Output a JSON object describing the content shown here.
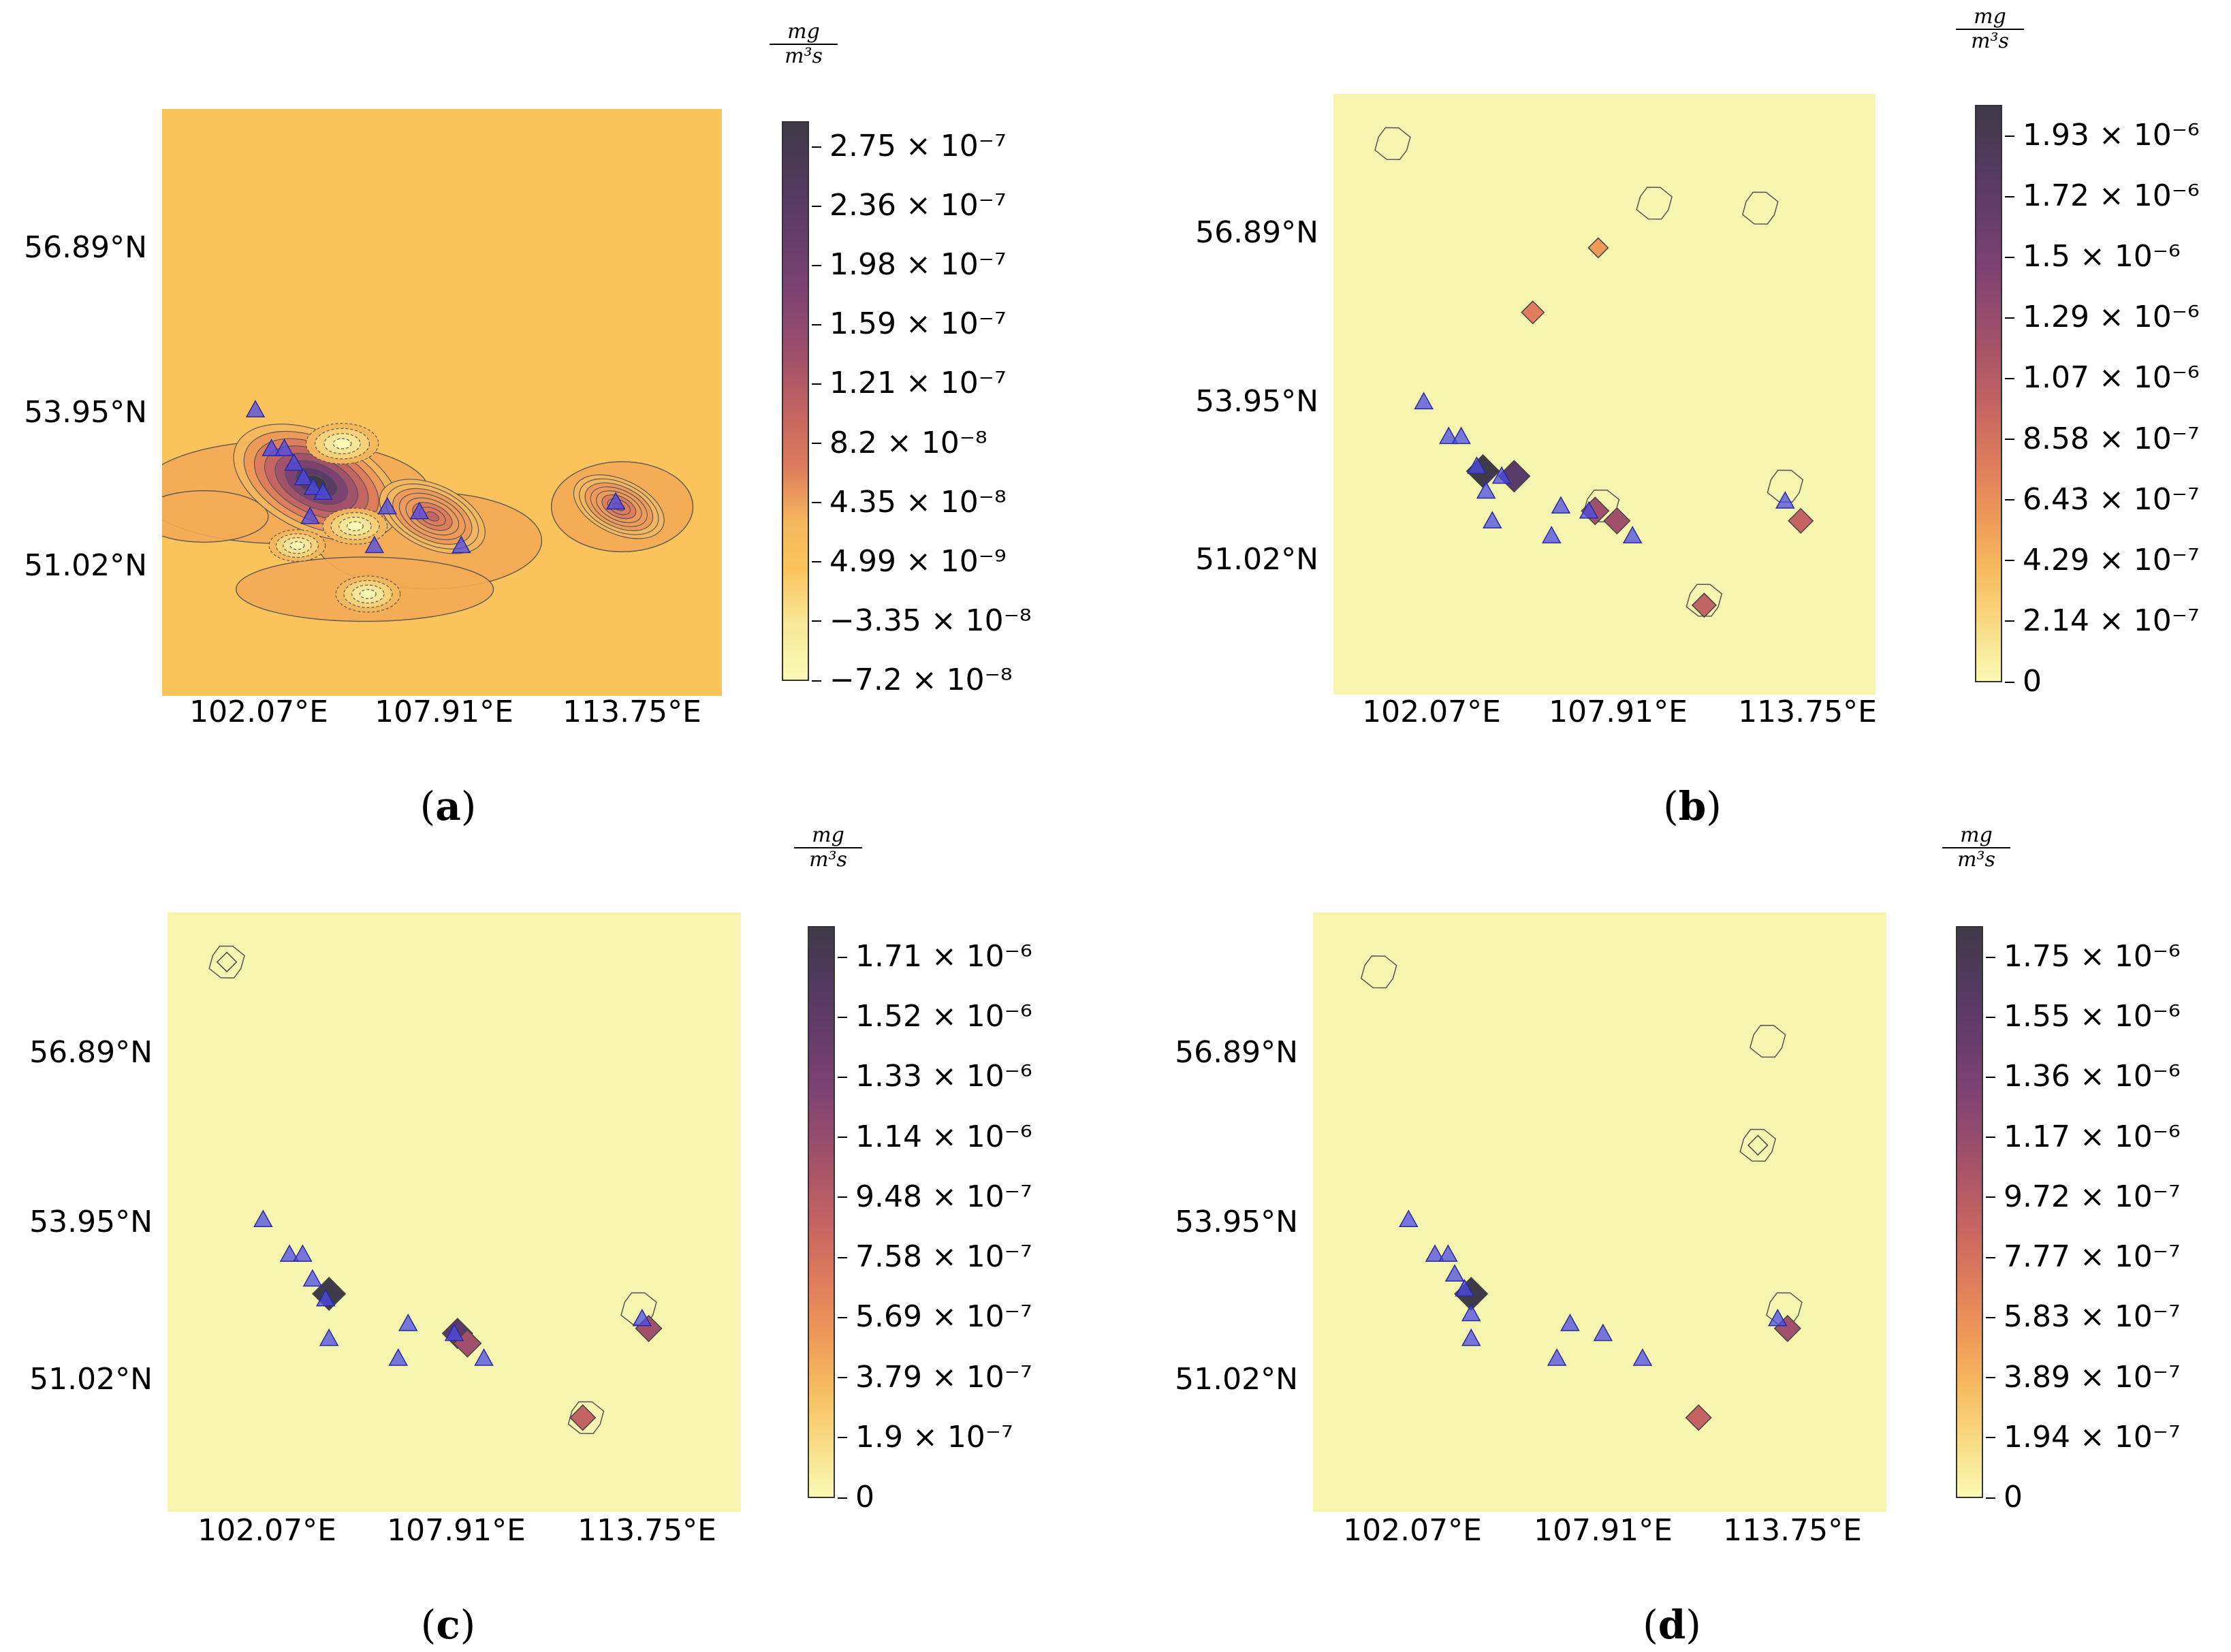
{
  "figure": {
    "unit_numerator": "mg",
    "unit_denominator": "m³s",
    "lat_labels": [
      "56.89°N",
      "53.95°N",
      "51.02°N"
    ],
    "lon_labels": [
      "102.07°E",
      "107.91°E",
      "113.75°E"
    ]
  },
  "colors": {
    "bg_a": "#fbc35b",
    "bg_bcd": "#f6f5b0",
    "triangle": "#4b4be6",
    "contour": "#555555"
  },
  "chart_data": [
    {
      "id": "a",
      "type": "heatmap",
      "caption_letter": "a",
      "colorbar_ticks": [
        "2.75 × 10⁻⁷",
        "2.36 × 10⁻⁷",
        "1.98 × 10⁻⁷",
        "1.59 × 10⁻⁷",
        "1.21 × 10⁻⁷",
        "8.2 × 10⁻⁸",
        "4.35 × 10⁻⁸",
        "4.99 × 10⁻⁹",
        "−3.35 × 10⁻⁸",
        "−7.2 × 10⁻⁸"
      ],
      "colorbar_range": [
        -7.2e-08,
        2.75e-07
      ],
      "stations": [
        [
          102.1,
          54.0
        ],
        [
          102.6,
          53.2
        ],
        [
          103.0,
          53.2
        ],
        [
          103.3,
          52.9
        ],
        [
          103.6,
          52.6
        ],
        [
          103.9,
          52.4
        ],
        [
          104.2,
          52.3
        ],
        [
          103.8,
          51.8
        ],
        [
          106.2,
          52.0
        ],
        [
          107.2,
          51.9
        ],
        [
          105.8,
          51.2
        ],
        [
          108.5,
          51.2
        ],
        [
          113.3,
          52.1
        ]
      ],
      "features": [
        {
          "kind": "hot",
          "lon": 104.0,
          "lat": 52.5,
          "r": 2.2,
          "level": 0.95
        },
        {
          "kind": "hot",
          "lon": 107.6,
          "lat": 51.8,
          "r": 1.4,
          "level": 0.55
        },
        {
          "kind": "hot",
          "lon": 113.4,
          "lat": 52.0,
          "r": 1.2,
          "level": 0.55
        },
        {
          "kind": "cold",
          "lon": 104.8,
          "lat": 53.3,
          "r": 0.9,
          "level": 0.1
        },
        {
          "kind": "cold",
          "lon": 105.2,
          "lat": 51.6,
          "r": 0.8,
          "level": 0.1
        },
        {
          "kind": "cold",
          "lon": 103.4,
          "lat": 51.2,
          "r": 0.7,
          "level": 0.15
        },
        {
          "kind": "cold",
          "lon": 105.6,
          "lat": 50.2,
          "r": 0.8,
          "level": 0.15
        }
      ]
    },
    {
      "id": "b",
      "type": "heatmap",
      "caption_letter": "b",
      "colorbar_ticks": [
        "1.93 × 10⁻⁶",
        "1.72 × 10⁻⁶",
        "1.5 × 10⁻⁶",
        "1.29 × 10⁻⁶",
        "1.07 × 10⁻⁶",
        "8.58 × 10⁻⁷",
        "6.43 × 10⁻⁷",
        "4.29 × 10⁻⁷",
        "2.14 × 10⁻⁷",
        "0"
      ],
      "colorbar_range": [
        0,
        2e-06
      ],
      "stations": [
        [
          102.1,
          54.0
        ],
        [
          102.9,
          53.3
        ],
        [
          103.3,
          53.3
        ],
        [
          103.8,
          52.7
        ],
        [
          104.1,
          52.2
        ],
        [
          104.3,
          51.6
        ],
        [
          104.6,
          52.5
        ],
        [
          106.2,
          51.3
        ],
        [
          106.5,
          51.9
        ],
        [
          107.4,
          51.8
        ],
        [
          108.8,
          51.3
        ],
        [
          113.7,
          52.0
        ]
      ],
      "hotspots": [
        {
          "lon": 104.0,
          "lat": 52.6,
          "level": 1.0
        },
        {
          "lon": 105.0,
          "lat": 52.5,
          "level": 0.9
        },
        {
          "lon": 107.6,
          "lat": 51.8,
          "level": 0.6
        },
        {
          "lon": 108.3,
          "lat": 51.6,
          "level": 0.5
        },
        {
          "lon": 114.2,
          "lat": 51.6,
          "level": 0.4
        },
        {
          "lon": 111.1,
          "lat": 49.9,
          "level": 0.35
        },
        {
          "lon": 105.6,
          "lat": 55.8,
          "level": 0.25
        },
        {
          "lon": 107.7,
          "lat": 57.1,
          "level": 0.05
        }
      ],
      "outlines": [
        [
          101.1,
          59.2
        ],
        [
          109.5,
          58.0
        ],
        [
          112.9,
          57.9
        ],
        [
          111.1,
          50.0
        ],
        [
          113.7,
          52.3
        ],
        [
          107.8,
          51.9
        ]
      ]
    },
    {
      "id": "c",
      "type": "heatmap",
      "caption_letter": "c",
      "colorbar_ticks": [
        "1.71 × 10⁻⁶",
        "1.52 × 10⁻⁶",
        "1.33 × 10⁻⁶",
        "1.14 × 10⁻⁶",
        "9.48 × 10⁻⁷",
        "7.58 × 10⁻⁷",
        "5.69 × 10⁻⁷",
        "3.79 × 10⁻⁷",
        "1.9 × 10⁻⁷",
        "0"
      ],
      "colorbar_range": [
        0,
        1.8e-06
      ],
      "stations": [
        [
          102.1,
          54.0
        ],
        [
          102.9,
          53.3
        ],
        [
          103.3,
          53.3
        ],
        [
          103.6,
          52.8
        ],
        [
          104.0,
          52.4
        ],
        [
          104.1,
          51.6
        ],
        [
          106.2,
          51.2
        ],
        [
          106.5,
          51.9
        ],
        [
          107.9,
          51.7
        ],
        [
          108.8,
          51.2
        ],
        [
          113.6,
          52.0
        ]
      ],
      "hotspots": [
        {
          "lon": 104.1,
          "lat": 52.5,
          "level": 1.0
        },
        {
          "lon": 108.0,
          "lat": 51.7,
          "level": 0.8
        },
        {
          "lon": 108.3,
          "lat": 51.5,
          "level": 0.6
        },
        {
          "lon": 113.8,
          "lat": 51.8,
          "level": 0.5
        },
        {
          "lon": 111.8,
          "lat": 50.0,
          "level": 0.45
        },
        {
          "lon": 101.0,
          "lat": 59.2,
          "level": 0.02
        }
      ],
      "outlines": [
        [
          113.5,
          52.2
        ],
        [
          111.9,
          50.0
        ],
        [
          101.0,
          59.2
        ]
      ]
    },
    {
      "id": "d",
      "type": "heatmap",
      "caption_letter": "d",
      "colorbar_ticks": [
        "1.75 × 10⁻⁶",
        "1.55 × 10⁻⁶",
        "1.36 × 10⁻⁶",
        "1.17 × 10⁻⁶",
        "9.72 × 10⁻⁷",
        "7.77 × 10⁻⁷",
        "5.83 × 10⁻⁷",
        "3.89 × 10⁻⁷",
        "1.94 × 10⁻⁷",
        "0"
      ],
      "colorbar_range": [
        0,
        1.85e-06
      ],
      "stations": [
        [
          102.1,
          54.0
        ],
        [
          102.9,
          53.3
        ],
        [
          103.3,
          53.3
        ],
        [
          103.5,
          52.9
        ],
        [
          103.8,
          52.6
        ],
        [
          104.0,
          52.1
        ],
        [
          104.0,
          51.6
        ],
        [
          107.0,
          51.9
        ],
        [
          108.0,
          51.7
        ],
        [
          106.6,
          51.2
        ],
        [
          109.2,
          51.2
        ],
        [
          113.3,
          52.0
        ]
      ],
      "hotspots": [
        {
          "lon": 104.0,
          "lat": 52.5,
          "level": 1.0
        },
        {
          "lon": 113.6,
          "lat": 51.8,
          "level": 0.5
        },
        {
          "lon": 110.9,
          "lat": 50.0,
          "level": 0.45
        },
        {
          "lon": 112.7,
          "lat": 55.5,
          "level": 0.03
        }
      ],
      "outlines": [
        [
          101.2,
          59.0
        ],
        [
          113.0,
          57.6
        ],
        [
          112.7,
          55.5
        ],
        [
          113.5,
          52.2
        ]
      ]
    }
  ]
}
